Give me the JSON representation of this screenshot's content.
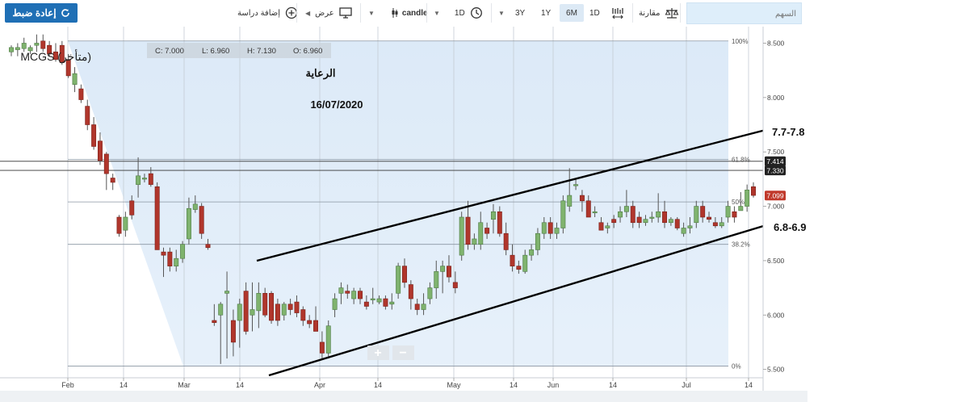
{
  "toolbar": {
    "reset_label": "إعادة ضبط",
    "add_study_label": "إضافة دراسة",
    "display_label": "عرض",
    "candle_label": "candle",
    "interval_label": "1D",
    "range_buttons": [
      "3Y",
      "1Y",
      "6M",
      "1D"
    ],
    "active_range": "6M",
    "compare_label": "مقارنة",
    "search_placeholder": "السهم"
  },
  "chart_data": {
    "type": "candlestick",
    "symbol_label": "MCGS (متأخر)",
    "ohlc_readout": {
      "c": "C: 7.000",
      "l": "L: 6.960",
      "h": "H: 7.130",
      "o": "O: 6.960"
    },
    "annotation_title": "الرعاية",
    "annotation_date": "16/07/2020",
    "channel_upper_label": "7.7-7.8",
    "channel_lower_label": "6.8-6.9",
    "y_ticks": [
      5.5,
      6.0,
      6.5,
      7.0,
      7.5,
      8.0,
      8.5
    ],
    "y_tick_labels": [
      "5.500",
      "6.000",
      "6.500",
      "7.000",
      "7.500",
      "8.000",
      "8.500"
    ],
    "ylim": [
      5.46,
      8.6
    ],
    "x_ticks": [
      "Feb",
      "14",
      "Mar",
      "14",
      "Apr",
      "14",
      "May",
      "14",
      "Jun",
      "14",
      "Jul",
      "14"
    ],
    "fib_levels": [
      {
        "label": "100%",
        "value": 8.52
      },
      {
        "label": "61.8%",
        "value": 7.43
      },
      {
        "label": "50%",
        "value": 7.04
      },
      {
        "label": "38.2%",
        "value": 6.65
      },
      {
        "label": "0%",
        "value": 5.53
      }
    ],
    "price_markers": [
      {
        "label": "7.414",
        "value": 7.414,
        "color": "#222222"
      },
      {
        "label": "7.330",
        "value": 7.33,
        "color": "#222222"
      },
      {
        "label": "7.099",
        "value": 7.099,
        "color": "#c0392b"
      }
    ],
    "candles": [
      {
        "o": 8.42,
        "h": 8.48,
        "l": 8.38,
        "c": 8.46
      },
      {
        "o": 8.44,
        "h": 8.5,
        "l": 8.38,
        "c": 8.46
      },
      {
        "o": 8.45,
        "h": 8.55,
        "l": 8.42,
        "c": 8.5
      },
      {
        "o": 8.43,
        "h": 8.48,
        "l": 8.4,
        "c": 8.46
      },
      {
        "o": 8.48,
        "h": 8.58,
        "l": 8.42,
        "c": 8.5
      },
      {
        "o": 8.52,
        "h": 8.58,
        "l": 8.42,
        "c": 8.45
      },
      {
        "o": 8.48,
        "h": 8.52,
        "l": 8.38,
        "c": 8.4
      },
      {
        "o": 8.42,
        "h": 8.5,
        "l": 8.33,
        "c": 8.35
      },
      {
        "o": 8.48,
        "h": 8.52,
        "l": 8.3,
        "c": 8.32
      },
      {
        "o": 8.35,
        "h": 8.4,
        "l": 8.18,
        "c": 8.2
      },
      {
        "o": 8.12,
        "h": 8.28,
        "l": 8.05,
        "c": 8.22
      },
      {
        "o": 8.08,
        "h": 8.12,
        "l": 7.95,
        "c": 7.98
      },
      {
        "o": 7.92,
        "h": 7.98,
        "l": 7.7,
        "c": 7.75
      },
      {
        "o": 7.75,
        "h": 7.82,
        "l": 7.52,
        "c": 7.55
      },
      {
        "o": 7.6,
        "h": 7.68,
        "l": 7.38,
        "c": 7.42
      },
      {
        "o": 7.48,
        "h": 7.5,
        "l": 7.15,
        "c": 7.3
      },
      {
        "o": 7.26,
        "h": 7.3,
        "l": 7.15,
        "c": 7.22
      },
      {
        "o": 6.9,
        "h": 6.92,
        "l": 6.72,
        "c": 6.75
      },
      {
        "o": 6.78,
        "h": 6.95,
        "l": 6.72,
        "c": 6.9
      },
      {
        "o": 7.05,
        "h": 7.1,
        "l": 6.88,
        "c": 6.92
      },
      {
        "o": 7.2,
        "h": 7.45,
        "l": 7.08,
        "c": 7.28
      },
      {
        "o": 7.25,
        "h": 7.3,
        "l": 7.22,
        "c": 7.26
      },
      {
        "o": 7.3,
        "h": 7.36,
        "l": 7.18,
        "c": 7.2
      },
      {
        "o": 7.18,
        "h": 7.22,
        "l": 6.6,
        "c": 6.6
      },
      {
        "o": 6.58,
        "h": 6.62,
        "l": 6.35,
        "c": 6.55
      },
      {
        "o": 6.58,
        "h": 6.62,
        "l": 6.4,
        "c": 6.45
      },
      {
        "o": 6.45,
        "h": 6.6,
        "l": 6.4,
        "c": 6.52
      },
      {
        "o": 6.52,
        "h": 6.68,
        "l": 6.48,
        "c": 6.65
      },
      {
        "o": 6.7,
        "h": 7.08,
        "l": 6.65,
        "c": 6.98
      },
      {
        "o": 6.97,
        "h": 7.1,
        "l": 6.94,
        "c": 7.02
      },
      {
        "o": 7.0,
        "h": 7.03,
        "l": 6.7,
        "c": 6.75
      },
      {
        "o": 6.65,
        "h": 6.7,
        "l": 6.6,
        "c": 6.62
      },
      {
        "o": 5.95,
        "h": 6.1,
        "l": 5.9,
        "c": 5.93
      },
      {
        "o": 6.0,
        "h": 6.12,
        "l": 5.55,
        "c": 6.1
      },
      {
        "o": 6.2,
        "h": 6.4,
        "l": 5.6,
        "c": 6.22
      },
      {
        "o": 5.95,
        "h": 6.05,
        "l": 5.62,
        "c": 5.75
      },
      {
        "o": 5.95,
        "h": 6.15,
        "l": 5.7,
        "c": 6.1
      },
      {
        "o": 6.22,
        "h": 6.3,
        "l": 5.82,
        "c": 5.85
      },
      {
        "o": 6.0,
        "h": 6.3,
        "l": 5.85,
        "c": 6.05
      },
      {
        "o": 6.04,
        "h": 6.3,
        "l": 5.88,
        "c": 6.2
      },
      {
        "o": 6.2,
        "h": 6.25,
        "l": 5.98,
        "c": 6.0
      },
      {
        "o": 6.2,
        "h": 6.22,
        "l": 5.92,
        "c": 5.95
      },
      {
        "o": 6.1,
        "h": 6.15,
        "l": 5.9,
        "c": 5.95
      },
      {
        "o": 6.0,
        "h": 6.12,
        "l": 5.95,
        "c": 6.1
      },
      {
        "o": 6.1,
        "h": 6.15,
        "l": 6.0,
        "c": 6.05
      },
      {
        "o": 6.12,
        "h": 6.18,
        "l": 5.98,
        "c": 6.02
      },
      {
        "o": 6.05,
        "h": 6.08,
        "l": 5.9,
        "c": 5.95
      },
      {
        "o": 5.95,
        "h": 6.0,
        "l": 5.88,
        "c": 5.92
      },
      {
        "o": 5.95,
        "h": 6.08,
        "l": 5.85,
        "c": 5.85
      },
      {
        "o": 5.75,
        "h": 5.85,
        "l": 5.6,
        "c": 5.65
      },
      {
        "o": 5.65,
        "h": 5.95,
        "l": 5.6,
        "c": 5.9
      },
      {
        "o": 6.05,
        "h": 6.2,
        "l": 5.98,
        "c": 6.15
      },
      {
        "o": 6.2,
        "h": 6.3,
        "l": 6.1,
        "c": 6.25
      },
      {
        "o": 6.22,
        "h": 6.28,
        "l": 6.15,
        "c": 6.2
      },
      {
        "o": 6.15,
        "h": 6.25,
        "l": 6.1,
        "c": 6.22
      },
      {
        "o": 6.22,
        "h": 6.25,
        "l": 6.1,
        "c": 6.15
      },
      {
        "o": 6.12,
        "h": 6.18,
        "l": 6.05,
        "c": 6.08
      },
      {
        "o": 6.15,
        "h": 6.25,
        "l": 6.1,
        "c": 6.15
      },
      {
        "o": 6.12,
        "h": 6.18,
        "l": 6.1,
        "c": 6.15
      },
      {
        "o": 6.15,
        "h": 6.18,
        "l": 6.05,
        "c": 6.08
      },
      {
        "o": 6.1,
        "h": 6.2,
        "l": 6.05,
        "c": 6.12
      },
      {
        "o": 6.2,
        "h": 6.48,
        "l": 6.15,
        "c": 6.45
      },
      {
        "o": 6.45,
        "h": 6.52,
        "l": 6.25,
        "c": 6.3
      },
      {
        "o": 6.28,
        "h": 6.32,
        "l": 6.05,
        "c": 6.15
      },
      {
        "o": 6.1,
        "h": 6.15,
        "l": 6.0,
        "c": 6.05
      },
      {
        "o": 6.05,
        "h": 6.2,
        "l": 6.0,
        "c": 6.1
      },
      {
        "o": 6.15,
        "h": 6.3,
        "l": 6.1,
        "c": 6.25
      },
      {
        "o": 6.25,
        "h": 6.5,
        "l": 6.15,
        "c": 6.4
      },
      {
        "o": 6.4,
        "h": 6.5,
        "l": 6.2,
        "c": 6.45
      },
      {
        "o": 6.45,
        "h": 6.55,
        "l": 6.3,
        "c": 6.35
      },
      {
        "o": 6.3,
        "h": 6.4,
        "l": 6.2,
        "c": 6.25
      },
      {
        "o": 6.55,
        "h": 6.95,
        "l": 6.5,
        "c": 6.9
      },
      {
        "o": 6.9,
        "h": 7.05,
        "l": 6.6,
        "c": 6.65
      },
      {
        "o": 6.65,
        "h": 6.75,
        "l": 6.6,
        "c": 6.7
      },
      {
        "o": 6.65,
        "h": 6.95,
        "l": 6.6,
        "c": 6.85
      },
      {
        "o": 6.8,
        "h": 6.85,
        "l": 6.7,
        "c": 6.75
      },
      {
        "o": 6.88,
        "h": 7.02,
        "l": 6.75,
        "c": 6.95
      },
      {
        "o": 6.95,
        "h": 7.0,
        "l": 6.72,
        "c": 6.75
      },
      {
        "o": 6.75,
        "h": 6.85,
        "l": 6.55,
        "c": 6.6
      },
      {
        "o": 6.55,
        "h": 6.65,
        "l": 6.4,
        "c": 6.45
      },
      {
        "o": 6.45,
        "h": 6.5,
        "l": 6.38,
        "c": 6.42
      },
      {
        "o": 6.4,
        "h": 6.6,
        "l": 6.38,
        "c": 6.55
      },
      {
        "o": 6.55,
        "h": 6.65,
        "l": 6.5,
        "c": 6.6
      },
      {
        "o": 6.6,
        "h": 6.8,
        "l": 6.55,
        "c": 6.75
      },
      {
        "o": 6.75,
        "h": 6.9,
        "l": 6.7,
        "c": 6.85
      },
      {
        "o": 6.85,
        "h": 6.9,
        "l": 6.7,
        "c": 6.75
      },
      {
        "o": 6.75,
        "h": 6.85,
        "l": 6.7,
        "c": 6.8
      },
      {
        "o": 6.8,
        "h": 7.1,
        "l": 6.75,
        "c": 7.05
      },
      {
        "o": 7.0,
        "h": 7.35,
        "l": 6.95,
        "c": 7.1
      },
      {
        "o": 7.2,
        "h": 7.25,
        "l": 7.15,
        "c": 7.2
      },
      {
        "o": 7.1,
        "h": 7.15,
        "l": 6.95,
        "c": 7.05
      },
      {
        "o": 7.05,
        "h": 7.1,
        "l": 6.9,
        "c": 6.9
      },
      {
        "o": 6.95,
        "h": 7.0,
        "l": 6.9,
        "c": 6.95
      },
      {
        "o": 6.85,
        "h": 6.9,
        "l": 6.78,
        "c": 6.78
      },
      {
        "o": 6.8,
        "h": 6.85,
        "l": 6.75,
        "c": 6.82
      },
      {
        "o": 6.88,
        "h": 6.92,
        "l": 6.8,
        "c": 6.85
      },
      {
        "o": 6.9,
        "h": 7.0,
        "l": 6.85,
        "c": 6.95
      },
      {
        "o": 6.95,
        "h": 7.15,
        "l": 6.9,
        "c": 7.0
      },
      {
        "o": 7.0,
        "h": 7.05,
        "l": 6.8,
        "c": 6.85
      },
      {
        "o": 6.9,
        "h": 6.95,
        "l": 6.8,
        "c": 6.85
      },
      {
        "o": 6.85,
        "h": 6.92,
        "l": 6.82,
        "c": 6.88
      },
      {
        "o": 6.9,
        "h": 6.95,
        "l": 6.85,
        "c": 6.9
      },
      {
        "o": 6.9,
        "h": 7.12,
        "l": 6.85,
        "c": 6.95
      },
      {
        "o": 6.95,
        "h": 7.05,
        "l": 6.8,
        "c": 6.85
      },
      {
        "o": 6.85,
        "h": 6.9,
        "l": 6.82,
        "c": 6.88
      },
      {
        "o": 6.88,
        "h": 6.9,
        "l": 6.78,
        "c": 6.8
      },
      {
        "o": 6.75,
        "h": 6.85,
        "l": 6.72,
        "c": 6.8
      },
      {
        "o": 6.8,
        "h": 6.9,
        "l": 6.75,
        "c": 6.82
      },
      {
        "o": 6.85,
        "h": 7.05,
        "l": 6.8,
        "c": 7.0
      },
      {
        "o": 7.0,
        "h": 7.05,
        "l": 6.85,
        "c": 6.9
      },
      {
        "o": 6.9,
        "h": 6.95,
        "l": 6.85,
        "c": 6.88
      },
      {
        "o": 6.85,
        "h": 6.9,
        "l": 6.8,
        "c": 6.82
      },
      {
        "o": 6.82,
        "h": 6.9,
        "l": 6.8,
        "c": 6.85
      },
      {
        "o": 6.9,
        "h": 7.05,
        "l": 6.85,
        "c": 7.0
      },
      {
        "o": 6.95,
        "h": 7.0,
        "l": 6.85,
        "c": 6.9
      },
      {
        "o": 6.96,
        "h": 7.13,
        "l": 6.96,
        "c": 7.0
      },
      {
        "o": 7.0,
        "h": 7.2,
        "l": 6.95,
        "c": 7.15
      },
      {
        "o": 7.18,
        "h": 7.22,
        "l": 7.08,
        "c": 7.1
      }
    ]
  },
  "zoom": {
    "in_label": "+",
    "out_label": "−"
  }
}
